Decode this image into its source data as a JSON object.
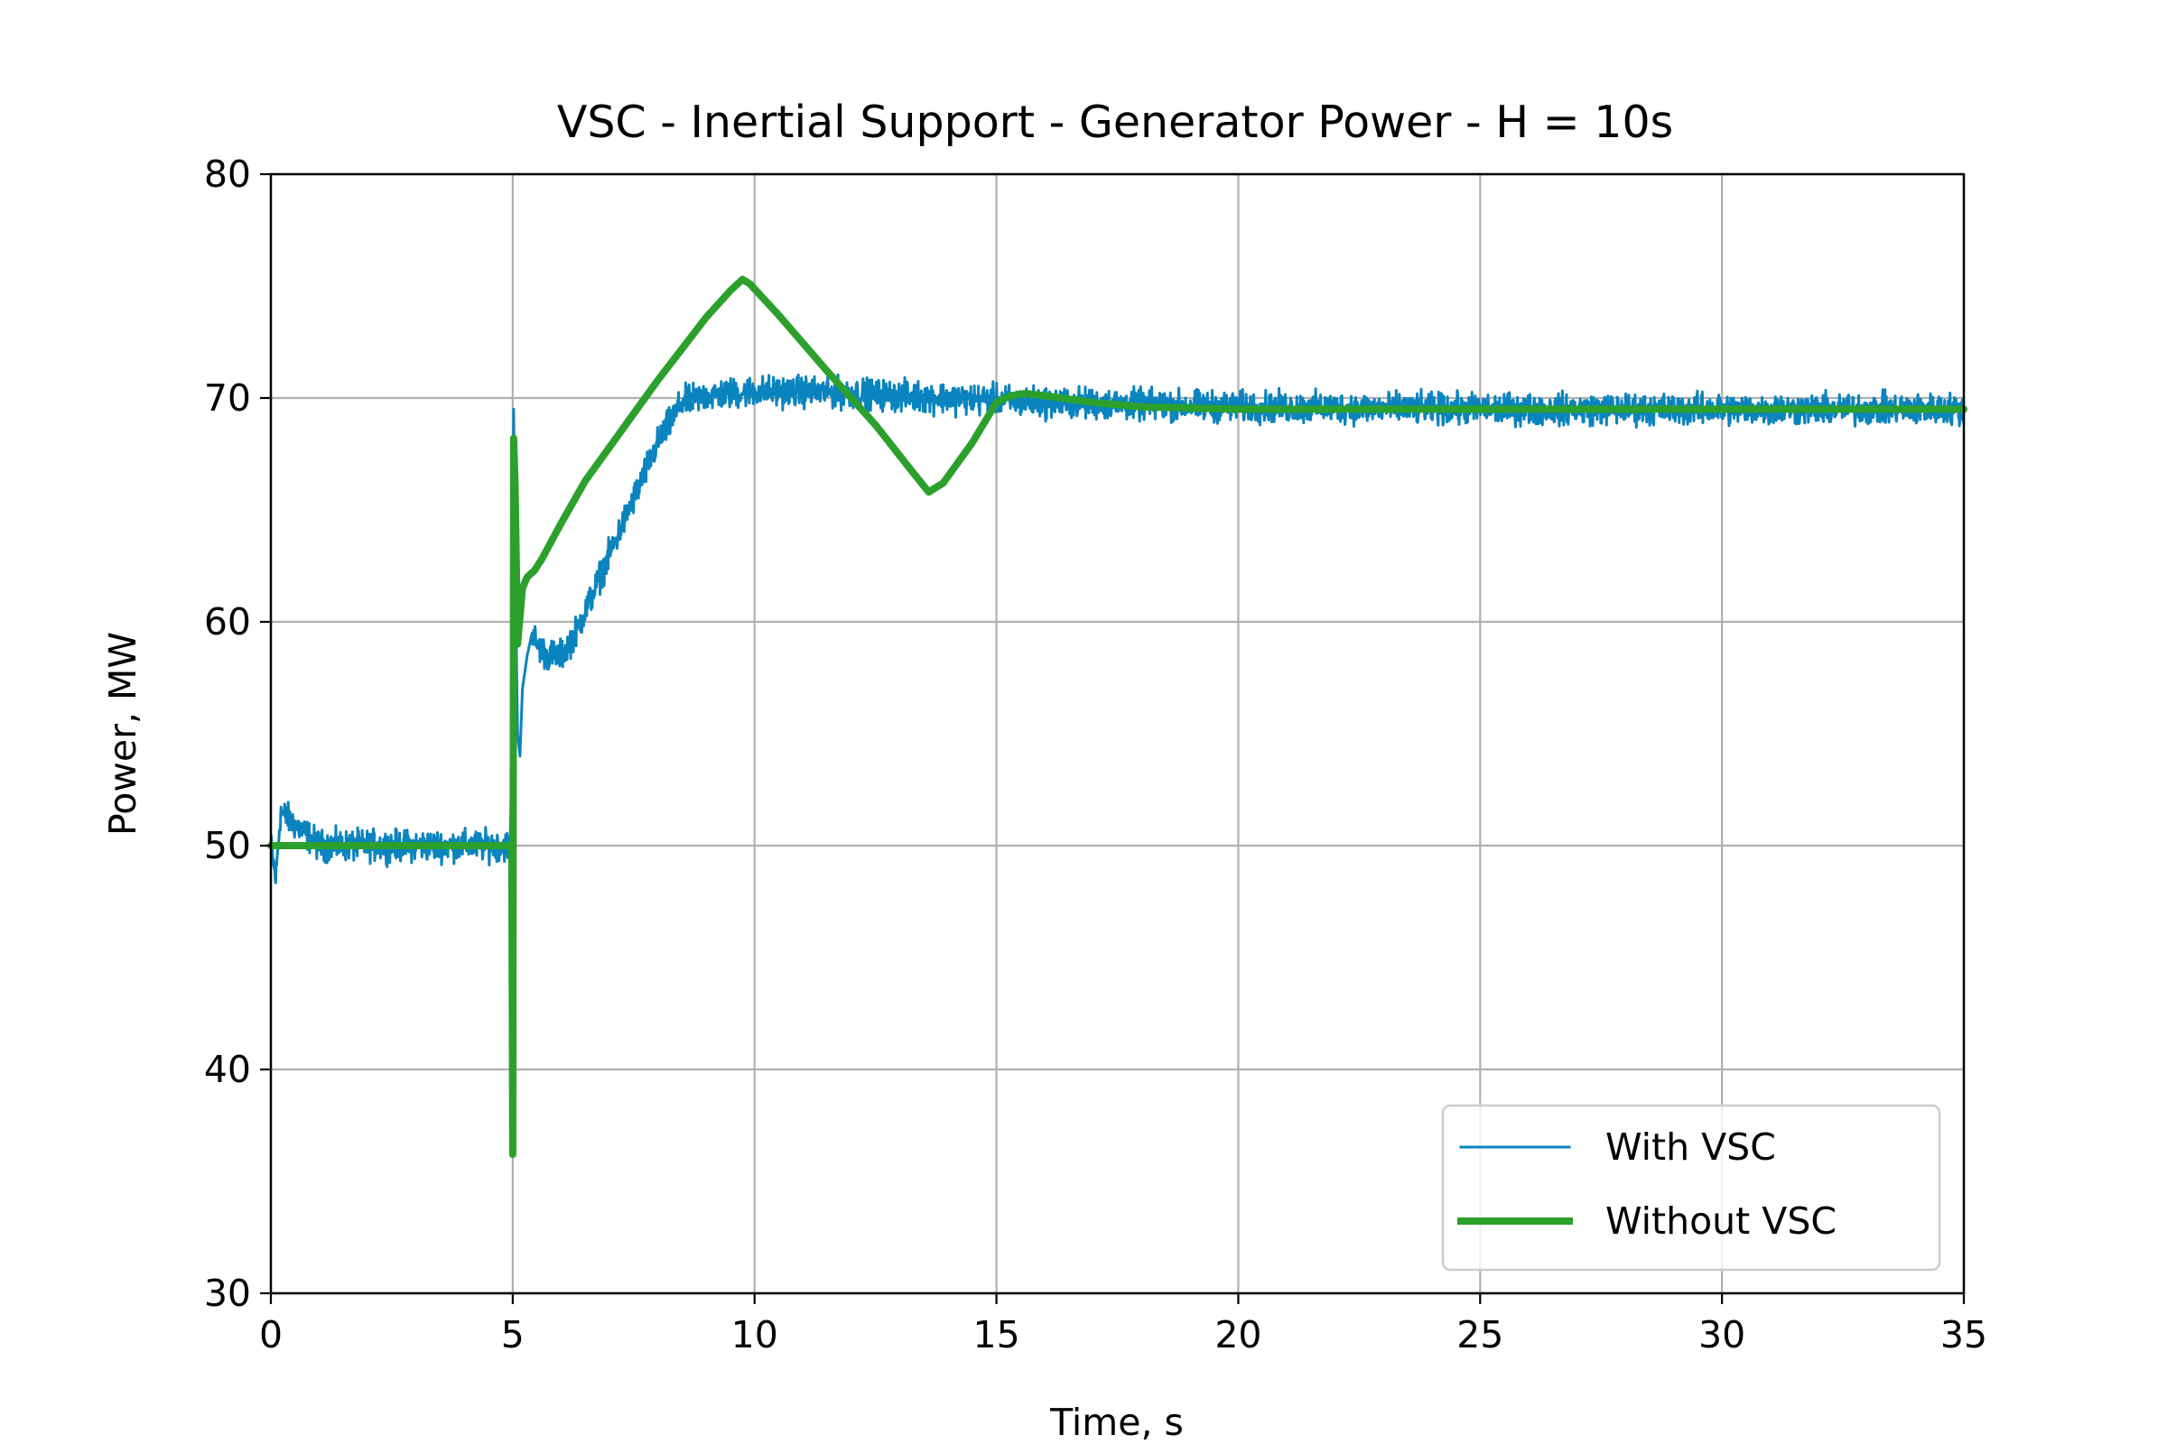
{
  "chart_data": {
    "type": "line",
    "title": "VSC - Inertial Support - Generator Power - H = 10s",
    "xlabel": "Time, s",
    "ylabel": "Power, MW",
    "xlim": [
      0,
      35
    ],
    "ylim": [
      30,
      80
    ],
    "xticks": [
      0,
      5,
      10,
      15,
      20,
      25,
      30,
      35
    ],
    "yticks": [
      30,
      40,
      50,
      60,
      70,
      80
    ],
    "xtick_labels": [
      "0",
      "5",
      "10",
      "15",
      "20",
      "25",
      "30",
      "35"
    ],
    "ytick_labels": [
      "30",
      "40",
      "50",
      "60",
      "70",
      "80"
    ],
    "grid": true,
    "legend_position": "lower-right",
    "series": [
      {
        "name": "With VSC",
        "color": "#0a84be",
        "linewidth": "thin",
        "noise_band": 1.0,
        "x": [
          0,
          0.1,
          0.2,
          1,
          2,
          3,
          4,
          4.95,
          5.0,
          5.02,
          5.05,
          5.1,
          5.15,
          5.2,
          5.3,
          5.4,
          5.5,
          5.7,
          6.0,
          6.3,
          6.6,
          7.0,
          7.5,
          8.0,
          8.5,
          9.0,
          9.5,
          10,
          11,
          12,
          14,
          16,
          18,
          20,
          25,
          30,
          35
        ],
        "y": [
          50,
          48.5,
          51.5,
          50,
          50,
          50,
          50,
          50,
          58,
          69.5,
          63,
          55,
          54,
          57,
          58.5,
          59.5,
          59,
          58.5,
          58.5,
          59.5,
          61,
          63,
          65.5,
          68,
          69.8,
          70.1,
          70.2,
          70.3,
          70.3,
          70.2,
          70,
          69.8,
          69.7,
          69.6,
          69.5,
          69.5,
          69.5
        ]
      },
      {
        "name": "Without VSC",
        "color": "#2ca02c",
        "linewidth": "thick",
        "x": [
          0,
          4.98,
          5.0,
          5.02,
          5.05,
          5.1,
          5.2,
          5.3,
          5.45,
          5.6,
          6.0,
          6.5,
          7.0,
          7.5,
          8.0,
          8.5,
          9.0,
          9.5,
          9.75,
          9.9,
          10.5,
          11.5,
          12.5,
          13.3,
          13.6,
          13.9,
          14.5,
          15.0,
          15.3,
          15.6,
          16.0,
          17.0,
          18.0,
          20.0,
          25.0,
          30.0,
          35.0
        ],
        "y": [
          50,
          50,
          36.2,
          68.2,
          66,
          59,
          61.5,
          62,
          62.3,
          62.8,
          64.4,
          66.3,
          67.8,
          69.3,
          70.8,
          72.2,
          73.6,
          74.8,
          75.3,
          75.1,
          73.7,
          71.2,
          68.8,
          66.6,
          65.8,
          66.2,
          68.0,
          69.8,
          70.1,
          70.2,
          70.1,
          69.8,
          69.6,
          69.5,
          69.5,
          69.5,
          69.5
        ]
      }
    ]
  }
}
